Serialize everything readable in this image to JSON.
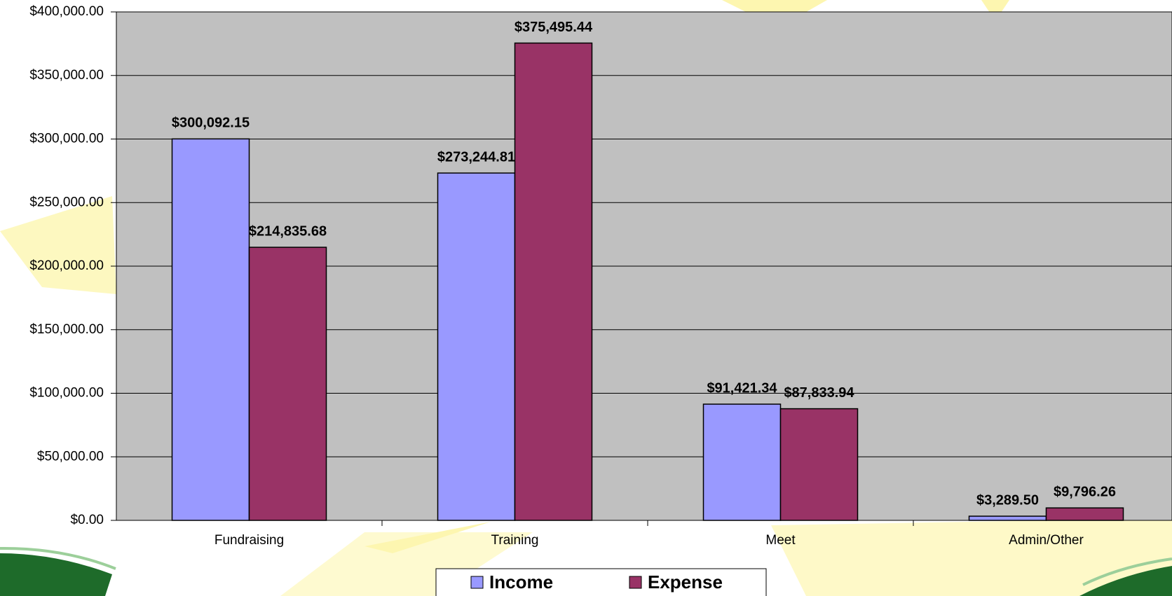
{
  "chart_data": {
    "type": "bar",
    "categories": [
      "Fundraising",
      "Training",
      "Meet",
      "Admin/Other"
    ],
    "series": [
      {
        "name": "Income",
        "color": "#9999ff",
        "values": [
          300092.15,
          273244.81,
          91421.34,
          3289.5
        ],
        "value_labels": [
          "$300,092.15",
          "$273,244.81",
          "$91,421.34",
          "$3,289.50"
        ]
      },
      {
        "name": "Expense",
        "color": "#993366",
        "values": [
          214835.68,
          375495.44,
          87833.94,
          9796.26
        ],
        "value_labels": [
          "$214,835.68",
          "$375,495.44",
          "$87,833.94",
          "$9,796.26"
        ]
      }
    ],
    "ylim": [
      0,
      400000
    ],
    "yticks": [
      {
        "value": 0,
        "label": "$0.00"
      },
      {
        "value": 50000,
        "label": "$50,000.00"
      },
      {
        "value": 100000,
        "label": "$100,000.00"
      },
      {
        "value": 150000,
        "label": "$150,000.00"
      },
      {
        "value": 200000,
        "label": "$200,000.00"
      },
      {
        "value": 250000,
        "label": "$250,000.00"
      },
      {
        "value": 300000,
        "label": "$300,000.00"
      },
      {
        "value": 350000,
        "label": "$350,000.00"
      },
      {
        "value": 400000,
        "label": "$400,000.00"
      }
    ],
    "grid": true,
    "plot_background": "#c0c0c0"
  }
}
